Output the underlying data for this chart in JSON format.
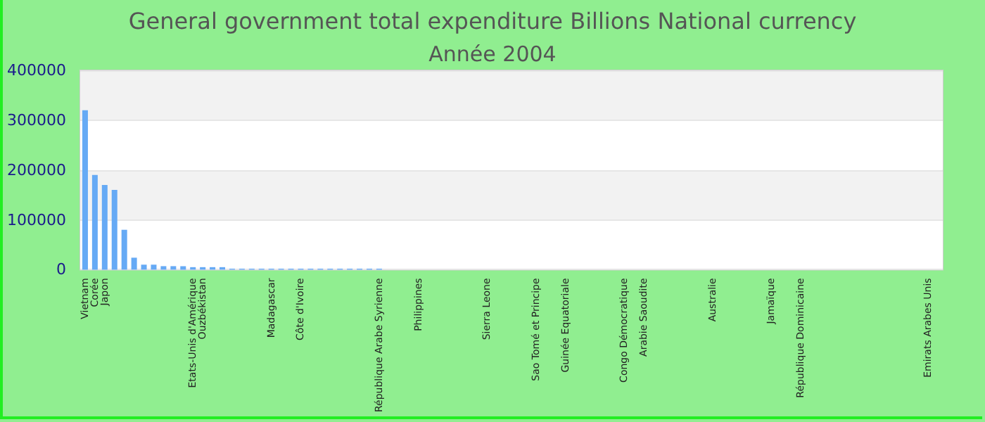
{
  "chart_data": {
    "type": "bar",
    "title": "General government total expenditure Billions National currency",
    "subtitle": "Année 2004",
    "categories": [
      "Vietnam",
      "Corée",
      "Japon",
      null,
      null,
      null,
      null,
      null,
      null,
      null,
      null,
      "Etats-Unis d'Amérique",
      "Ouzbékistan",
      null,
      null,
      null,
      null,
      null,
      null,
      "Madagascar",
      null,
      null,
      "Côte d'Ivoire",
      null,
      null,
      null,
      null,
      null,
      null,
      null,
      "République Arabe Syrienne",
      null,
      null,
      null,
      "Philippines",
      null,
      null,
      null,
      null,
      null,
      null,
      "Sierra Leone",
      null,
      null,
      null,
      null,
      "Sao Tomé et Principe",
      null,
      null,
      "Guinée Equatoriale",
      null,
      null,
      null,
      null,
      null,
      "Congo Démocratique",
      null,
      "Arabie Saoudite",
      null,
      null,
      null,
      null,
      null,
      null,
      "Australie",
      null,
      null,
      null,
      null,
      null,
      "Jamaïque",
      null,
      null,
      "République Dominicaine",
      null,
      null,
      null,
      null,
      null,
      null,
      null,
      null,
      null,
      null,
      null,
      null,
      "Emirats Arabes Unis",
      null
    ],
    "values": [
      320000,
      190000,
      170000,
      160000,
      80000,
      24000,
      10000,
      10000,
      7000,
      7000,
      7000,
      5000,
      5000,
      5000,
      5000,
      2000,
      2000,
      2000,
      2000,
      2000,
      2000,
      2000,
      2000,
      2000,
      2000,
      2000,
      2000,
      2000,
      2000,
      2000,
      2000,
      0,
      0,
      0,
      0,
      0,
      0,
      0,
      0,
      0,
      0,
      0,
      0,
      0,
      0,
      0,
      0,
      0,
      0,
      0,
      0,
      0,
      0,
      0,
      0,
      0,
      0,
      0,
      0,
      0,
      0,
      0,
      0,
      0,
      0,
      0,
      0,
      0,
      0,
      0,
      0,
      0,
      0,
      0,
      0,
      0,
      0,
      0,
      0,
      0,
      0,
      0,
      0,
      0,
      0,
      0,
      0,
      0
    ],
    "color": "#66aaf5",
    "ylim": [
      0,
      400000
    ],
    "yticks": [
      0,
      100000,
      200000,
      300000,
      400000
    ],
    "grid": "y"
  }
}
